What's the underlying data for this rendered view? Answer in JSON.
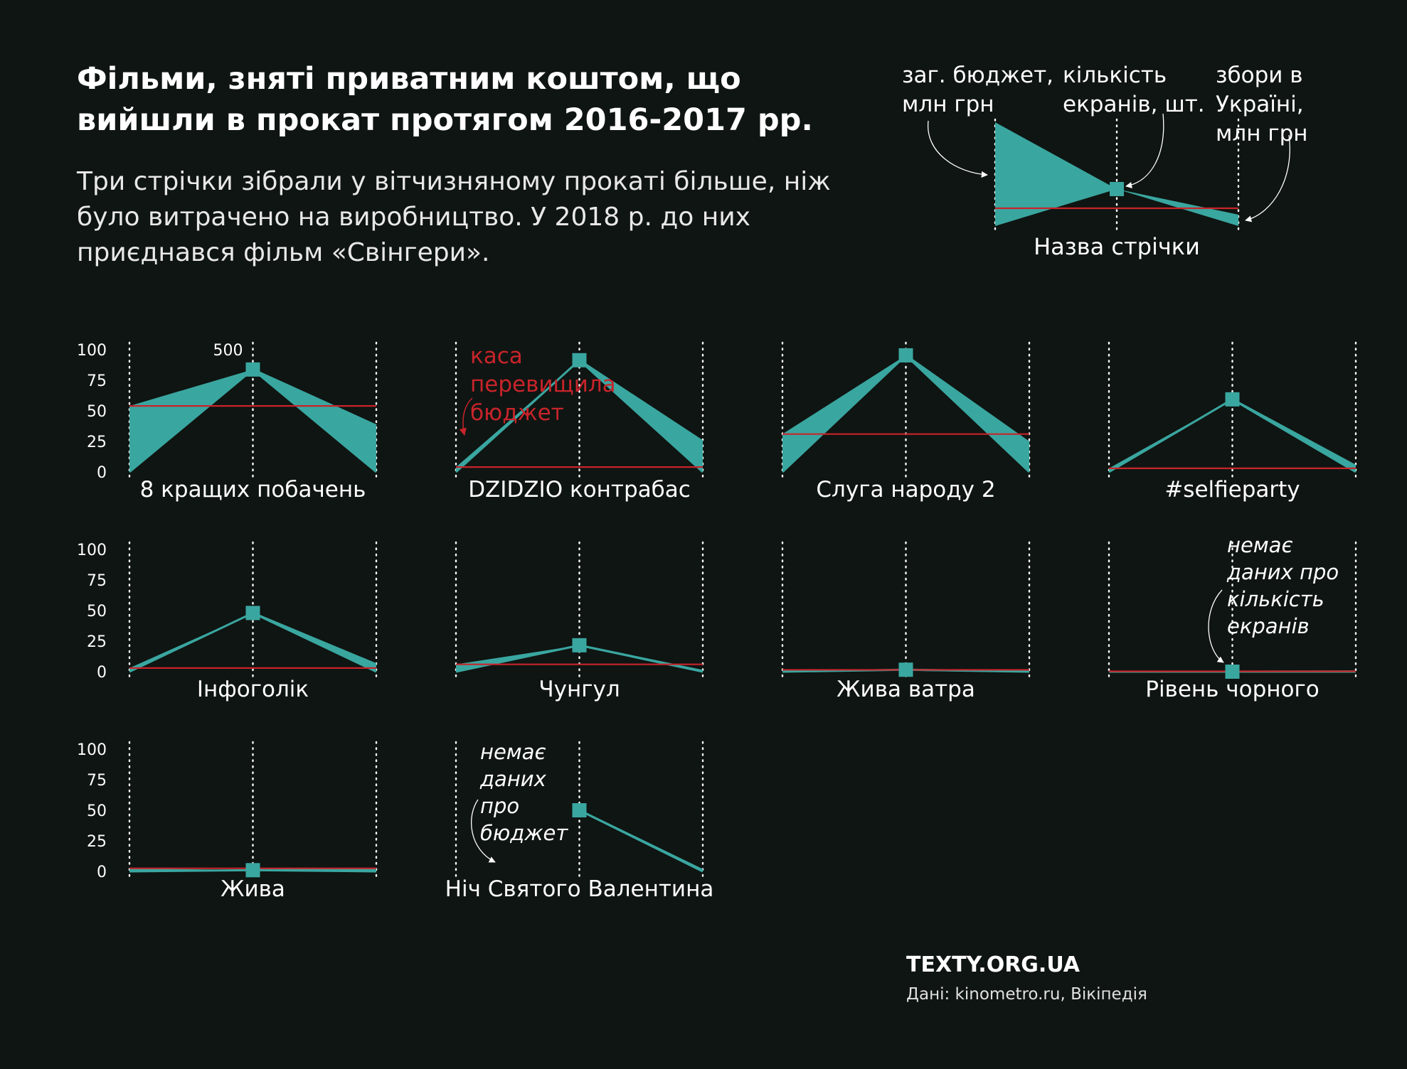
{
  "title": "Фільми, зняті приватним коштом, що вийшли в прокат протягом 2016-2017 рр.",
  "subtitle": "Три стрічки зібрали у вітчизняному прокаті більше, ніж було витрачено на виробництво. У 2018 р. до них приєднався фільм «Свінгери».",
  "brand": "TEXTY.ORG.UA",
  "source": "Дані: kinometro.ru, Вікіпедія",
  "legend": {
    "budget_label": [
      "заг. бюджет,",
      "млн грн"
    ],
    "screens_label": [
      "кількість",
      "екранів, шт."
    ],
    "box_office_label": [
      "збори в",
      "Україні,",
      "млн грн"
    ],
    "film_name_label": "Назва стрічки"
  },
  "annotations": {
    "exceeded": [
      "каса",
      "перевищила",
      "бюджет"
    ],
    "no_screens": [
      "немає",
      "даних про",
      "кількість",
      "екранів"
    ],
    "no_budget": [
      "немає",
      "даних",
      "про",
      "бюджет"
    ]
  },
  "colors": {
    "background": "#0f1512",
    "teal": "#3aa6a0",
    "red": "#c8242b",
    "text": "#ffffff"
  },
  "chart_data": {
    "type": "area",
    "y_axis_ticks": [
      0,
      25,
      50,
      75,
      100
    ],
    "screens_tick_label": "500",
    "ylim": [
      0,
      100
    ],
    "screens_max": 500,
    "series_keys": [
      "budget",
      "screens",
      "box_office"
    ],
    "films": [
      {
        "name": "8 кращих побачень",
        "budget": 54,
        "screens": 419,
        "box_office": 38
      },
      {
        "name": "DZIDZIO контрабас",
        "budget": 4,
        "screens": 457,
        "box_office": 25
      },
      {
        "name": "Слуга народу 2",
        "budget": 31,
        "screens": 477,
        "box_office": 24
      },
      {
        "name": "#selfieparty",
        "budget": 3,
        "screens": 297,
        "box_office": 5
      },
      {
        "name": "Інфоголік",
        "budget": 3,
        "screens": 240,
        "box_office": 6
      },
      {
        "name": "Чунгул",
        "budget": 6,
        "screens": 108,
        "box_office": 0.6
      },
      {
        "name": "Жива ватра",
        "budget": 1.5,
        "screens": 8,
        "box_office": 0.3
      },
      {
        "name": "Рівень чорного",
        "budget": 0.3,
        "screens": null,
        "box_office": 0.2
      },
      {
        "name": "Жива",
        "budget": 2.5,
        "screens": 5,
        "box_office": 1.5
      },
      {
        "name": "Ніч Святого Валентина",
        "budget": null,
        "screens": 250,
        "box_office": 1
      }
    ]
  }
}
